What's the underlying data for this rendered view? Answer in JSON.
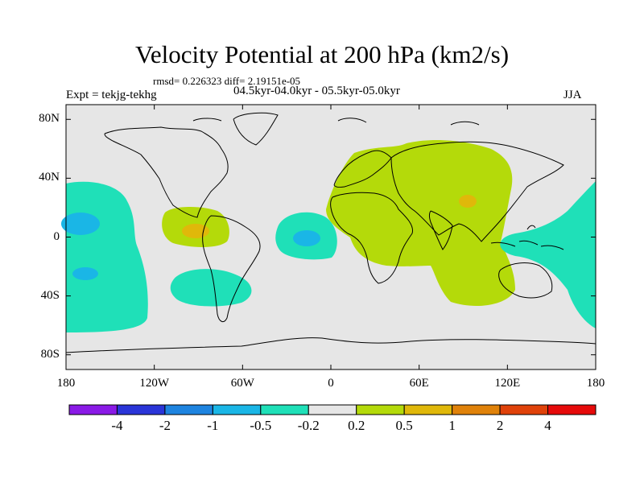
{
  "title": "Velocity Potential at 200 hPa (km2/s)",
  "stats": "rmsd= 0.226323 diff= 2.19151e-05",
  "left_label": "Expt = tekjg-tekhg",
  "center_label": "04.5kyr-04.0kyr - 05.5kyr-05.0kyr",
  "right_label": "JJA",
  "map_data": {
    "type": "filled-contour-map",
    "projection": "cylindrical-equidistant",
    "variable": "200 hPa velocity potential difference",
    "units": "km2/s",
    "xlim": [
      -180,
      180
    ],
    "ylim": [
      -90,
      90
    ],
    "x_ticks": [
      {
        "lon": -180,
        "label": "180"
      },
      {
        "lon": -120,
        "label": "120W"
      },
      {
        "lon": -60,
        "label": "60W"
      },
      {
        "lon": 0,
        "label": "0"
      },
      {
        "lon": 60,
        "label": "60E"
      },
      {
        "lon": 120,
        "label": "120E"
      },
      {
        "lon": 180,
        "label": "180"
      }
    ],
    "y_ticks": [
      {
        "lat": 80,
        "label": "80N"
      },
      {
        "lat": 40,
        "label": "40N"
      },
      {
        "lat": 0,
        "label": "0"
      },
      {
        "lat": -40,
        "label": "40S"
      },
      {
        "lat": -80,
        "label": "80S"
      }
    ],
    "regions": [
      {
        "name": "east-pacific-cyan",
        "range": "-0.5 to -0.2",
        "color": "#1fe0b8"
      },
      {
        "name": "central-pacific-blue",
        "range": "-1 to -0.5",
        "color": "#1ab6e6"
      },
      {
        "name": "central-america-lime",
        "range": "0.2 to 0.5",
        "color": "#b4da0a"
      },
      {
        "name": "central-america-core",
        "range": "0.5 to 1",
        "color": "#e0b80a"
      },
      {
        "name": "south-atlantic-cyan",
        "range": "-0.5 to -0.2",
        "color": "#1fe0b8"
      },
      {
        "name": "atlantic-cyan",
        "range": "-0.5 to -0.2",
        "color": "#1fe0b8"
      },
      {
        "name": "atlantic-blue",
        "range": "-1 to -0.5",
        "color": "#1ab6e6"
      },
      {
        "name": "eurasia-africa-lime",
        "range": "0.2 to 0.5",
        "color": "#b4da0a"
      },
      {
        "name": "tibet-core",
        "range": "0.5 to 1",
        "color": "#e0b80a"
      },
      {
        "name": "west-pacific-cyan",
        "range": "-0.5 to -0.2",
        "color": "#1fe0b8"
      }
    ]
  },
  "colorbar": {
    "labels": [
      "-4",
      "-2",
      "-1",
      "-0.5",
      "-0.2",
      "0.2",
      "0.5",
      "1",
      "2",
      "4"
    ],
    "colors": [
      "#8a1ae6",
      "#2a35d8",
      "#1e84e0",
      "#1ab6e6",
      "#1fe0b8",
      "#e6e6e6",
      "#b4da0a",
      "#e0b80a",
      "#e0820a",
      "#e0420a",
      "#e60a0a"
    ]
  }
}
